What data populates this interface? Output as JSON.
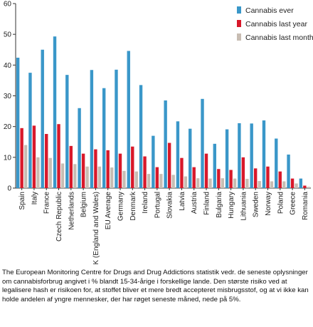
{
  "chart_data": {
    "type": "bar",
    "ylim": [
      0,
      60
    ],
    "yticks": [
      0,
      10,
      20,
      30,
      40,
      50,
      60
    ],
    "grid": false,
    "legend_position": "top-right",
    "categories": [
      "Spain",
      "Italy",
      "France",
      "Czech Republic",
      "Netherlands",
      "Belgium",
      "UK (England and Wales)",
      "EU Average",
      "Germany",
      "Denmark",
      "Ireland",
      "Portugal",
      "Slovakia",
      "Latvia",
      "Austria",
      "Finland",
      "Bulgaria",
      "Hungary",
      "Lithuania",
      "Sweden",
      "Norway",
      "Poland",
      "Greece",
      "Romania"
    ],
    "series": [
      {
        "name": "Cannabis ever",
        "color": "#3a97c9",
        "values": [
          42.4,
          37.5,
          45,
          49.3,
          36.8,
          26,
          38.4,
          32.5,
          38.5,
          44.6,
          33.5,
          17,
          28.5,
          21.7,
          19.3,
          29,
          14.4,
          19.1,
          21.1,
          21,
          22,
          16.1,
          10.9,
          3.1
        ]
      },
      {
        "name": "Cannabis last year",
        "color": "#d8182a",
        "values": [
          19.5,
          20.3,
          17.6,
          20.8,
          13.7,
          11.2,
          12.6,
          12.3,
          11.2,
          13.5,
          10.3,
          6.8,
          14.7,
          9.8,
          6.8,
          11.2,
          6.2,
          5.9,
          10,
          6.4,
          7,
          5.4,
          3.1,
          0.8
        ]
      },
      {
        "name": "Cannabis last month",
        "color": "#c8bdb3",
        "values": [
          14,
          10,
          9.8,
          8,
          7.8,
          7,
          7,
          6.7,
          5.6,
          5.4,
          4.6,
          4.6,
          4.3,
          3.8,
          3.2,
          3.1,
          3.2,
          3.1,
          3,
          2.3,
          2.2,
          2.2,
          1.5,
          0.4
        ]
      }
    ]
  },
  "caption": "The European Monitoring Centre for Drugs and Drug Addictions statistik vedr. de seneste oplysninger om cannabisforbrug angivet i % blandt 15-34-årige i forskellige lande. Den største risiko ved at legalisere hash er risikoen for, at stoffet bliver et mere bredt accepteret misbrugsstof, og at vi ikke kan holde andelen af yngre mennesker, der har røget seneste måned, nede på 5%."
}
